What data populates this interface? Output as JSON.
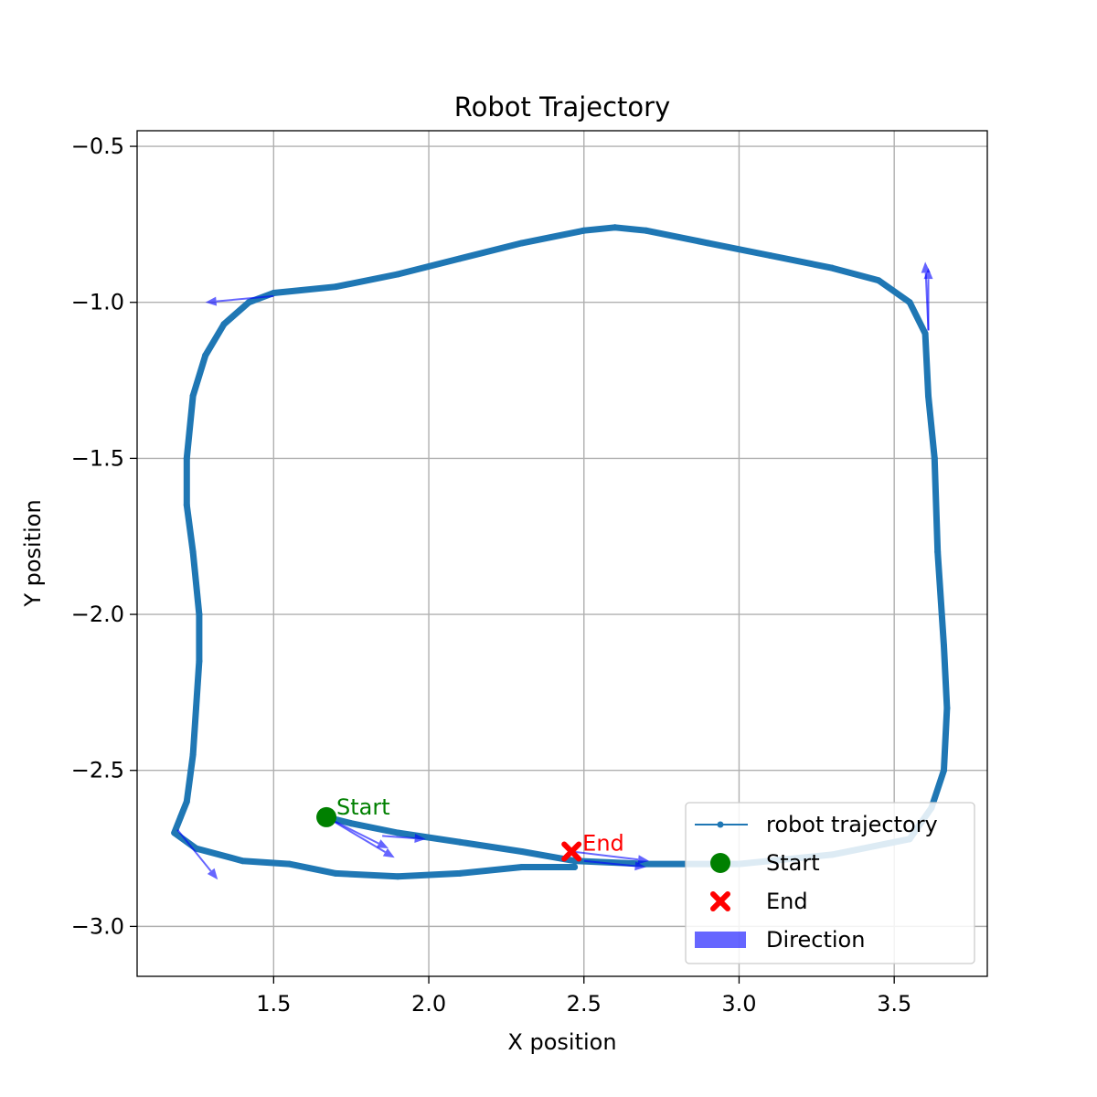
{
  "chart_data": {
    "type": "line",
    "title": "Robot Trajectory",
    "xlabel": "X position",
    "ylabel": "Y position",
    "xlim": [
      1.06,
      3.8
    ],
    "ylim": [
      -3.16,
      -0.45
    ],
    "x_ticks": [
      1.5,
      2.0,
      2.5,
      3.0,
      3.5
    ],
    "x_tick_labels": [
      "1.5",
      "2.0",
      "2.5",
      "3.0",
      "3.5"
    ],
    "y_ticks": [
      -0.5,
      -1.0,
      -1.5,
      -2.0,
      -2.5,
      -3.0
    ],
    "y_tick_labels": [
      "−0.5",
      "−1.0",
      "−1.5",
      "−2.0",
      "−2.5",
      "−3.0"
    ],
    "grid": true,
    "legend_position": "lower-right",
    "colors": {
      "trajectory": "#1f77b4",
      "start": "#008000",
      "end": "#ff0000",
      "direction": "#0000ff"
    },
    "series": [
      {
        "name": "robot trajectory",
        "points": [
          [
            1.67,
            -2.65
          ],
          [
            1.75,
            -2.67
          ],
          [
            1.9,
            -2.7
          ],
          [
            2.1,
            -2.73
          ],
          [
            2.3,
            -2.76
          ],
          [
            2.47,
            -2.79
          ],
          [
            2.7,
            -2.8
          ],
          [
            3.0,
            -2.8
          ],
          [
            3.3,
            -2.77
          ],
          [
            3.55,
            -2.72
          ],
          [
            3.62,
            -2.62
          ],
          [
            3.66,
            -2.5
          ],
          [
            3.67,
            -2.3
          ],
          [
            3.66,
            -2.1
          ],
          [
            3.64,
            -1.8
          ],
          [
            3.63,
            -1.5
          ],
          [
            3.61,
            -1.3
          ],
          [
            3.6,
            -1.1
          ],
          [
            3.55,
            -1.0
          ],
          [
            3.45,
            -0.93
          ],
          [
            3.3,
            -0.89
          ],
          [
            3.1,
            -0.85
          ],
          [
            2.9,
            -0.81
          ],
          [
            2.7,
            -0.77
          ],
          [
            2.6,
            -0.76
          ],
          [
            2.5,
            -0.77
          ],
          [
            2.3,
            -0.81
          ],
          [
            2.1,
            -0.86
          ],
          [
            1.9,
            -0.91
          ],
          [
            1.7,
            -0.95
          ],
          [
            1.5,
            -0.97
          ],
          [
            1.42,
            -1.0
          ],
          [
            1.34,
            -1.07
          ],
          [
            1.28,
            -1.17
          ],
          [
            1.24,
            -1.3
          ],
          [
            1.22,
            -1.5
          ],
          [
            1.22,
            -1.65
          ],
          [
            1.24,
            -1.8
          ],
          [
            1.26,
            -2.0
          ],
          [
            1.26,
            -2.15
          ],
          [
            1.25,
            -2.3
          ],
          [
            1.24,
            -2.45
          ],
          [
            1.22,
            -2.6
          ],
          [
            1.2,
            -2.65
          ],
          [
            1.18,
            -2.7
          ],
          [
            1.25,
            -2.75
          ],
          [
            1.4,
            -2.79
          ],
          [
            1.55,
            -2.8
          ],
          [
            1.7,
            -2.83
          ],
          [
            1.9,
            -2.84
          ],
          [
            2.1,
            -2.83
          ],
          [
            2.3,
            -2.81
          ],
          [
            2.47,
            -2.81
          ]
        ]
      }
    ],
    "markers": [
      {
        "name": "Start",
        "x": 1.67,
        "y": -2.65,
        "label": "Start",
        "marker": "circle"
      },
      {
        "name": "End",
        "x": 2.46,
        "y": -2.76,
        "label": "End",
        "marker": "x"
      }
    ],
    "direction_arrows": [
      {
        "x": 1.67,
        "y": -2.65,
        "dx": 0.22,
        "dy": -0.13
      },
      {
        "x": 1.67,
        "y": -2.65,
        "dx": 0.2,
        "dy": -0.1
      },
      {
        "x": 1.85,
        "y": -2.71,
        "dx": 0.14,
        "dy": -0.01
      },
      {
        "x": 2.46,
        "y": -2.76,
        "dx": 0.25,
        "dy": -0.03
      },
      {
        "x": 2.5,
        "y": -2.79,
        "dx": 0.2,
        "dy": -0.02
      },
      {
        "x": 3.61,
        "y": -1.09,
        "dx": -0.01,
        "dy": 0.22
      },
      {
        "x": 3.61,
        "y": -1.09,
        "dx": 0.0,
        "dy": 0.2
      },
      {
        "x": 1.5,
        "y": -0.98,
        "dx": -0.22,
        "dy": -0.02
      },
      {
        "x": 1.19,
        "y": -2.69,
        "dx": 0.13,
        "dy": -0.16
      }
    ],
    "legend": [
      {
        "label": "robot trajectory",
        "kind": "line"
      },
      {
        "label": "Start",
        "kind": "start"
      },
      {
        "label": "End",
        "kind": "end"
      },
      {
        "label": "Direction",
        "kind": "direction"
      }
    ]
  }
}
